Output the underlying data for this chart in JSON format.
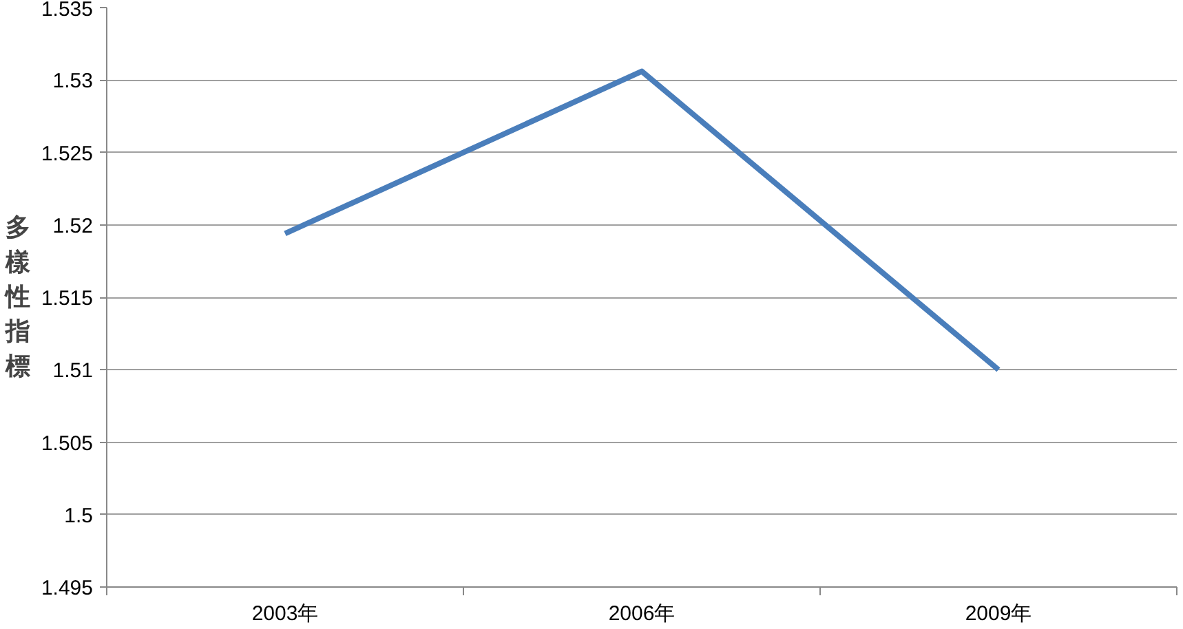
{
  "chart_data": {
    "type": "line",
    "ylabel": "多樣性指標",
    "categories": [
      "2003年",
      "2006年",
      "2009年"
    ],
    "series": [
      {
        "color": "#4a7ebb",
        "values": [
          1.5194,
          1.5306,
          1.51
        ]
      }
    ],
    "ylim": [
      1.495,
      1.535
    ],
    "yticks": [
      1.495,
      1.5,
      1.505,
      1.51,
      1.515,
      1.52,
      1.525,
      1.53,
      1.535
    ],
    "grid": "y",
    "marker": "none",
    "line_style": "solid"
  }
}
